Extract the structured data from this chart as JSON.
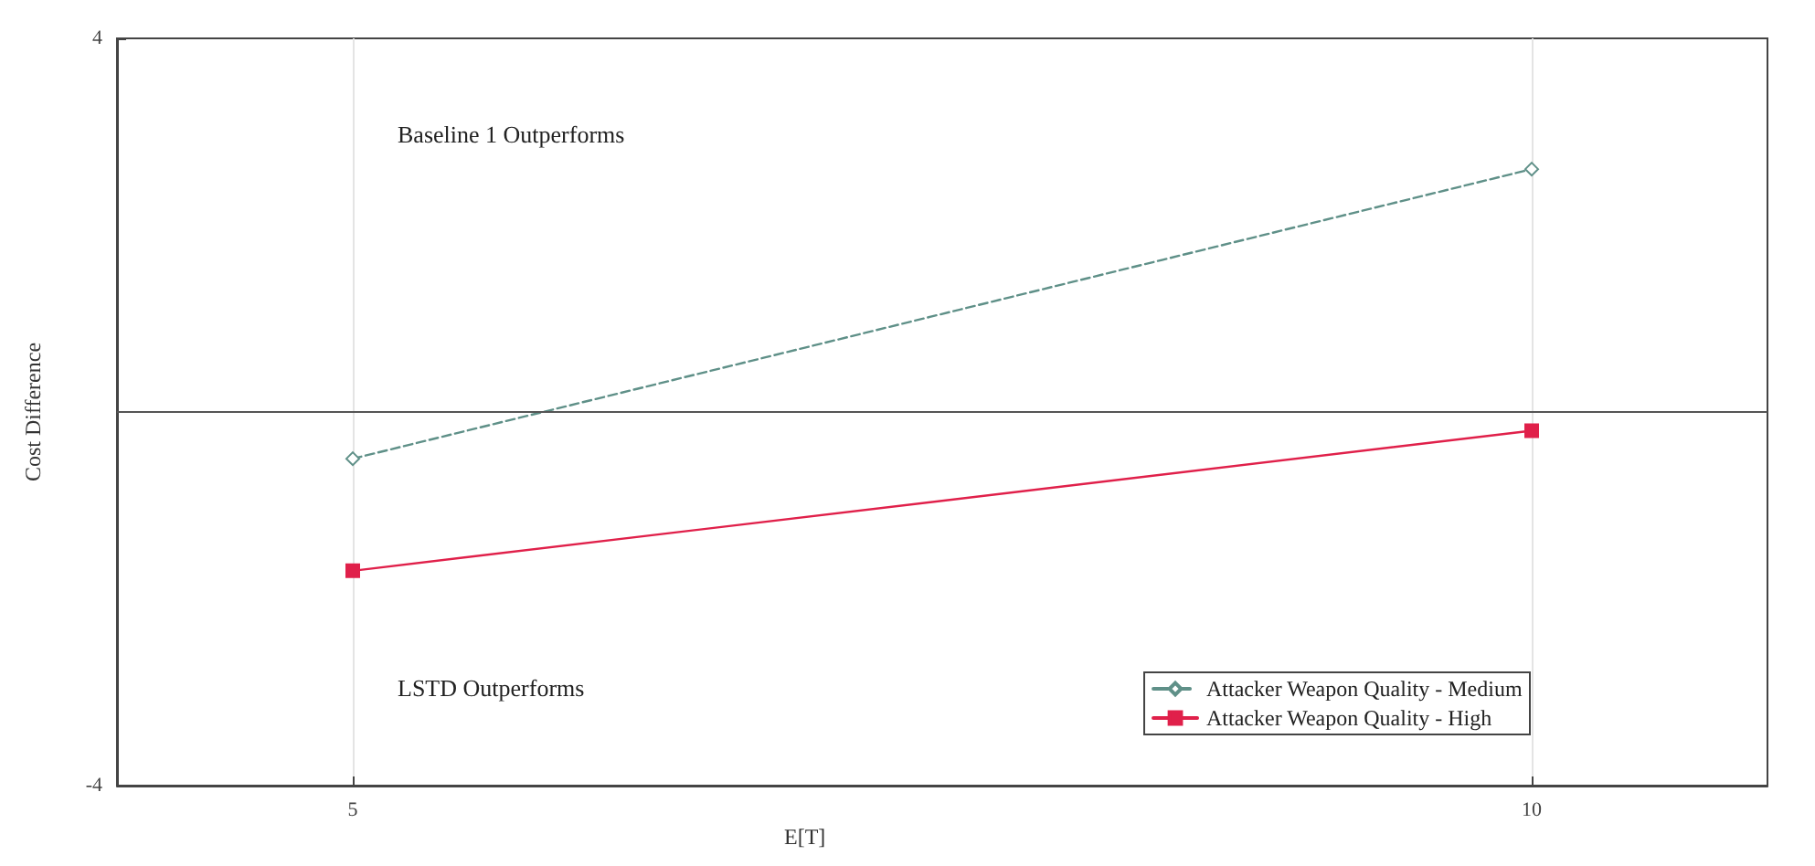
{
  "chart_data": {
    "type": "line",
    "xlabel": "E[T]",
    "ylabel": "Cost Difference",
    "x": [
      5,
      10
    ],
    "series": [
      {
        "name": "Attacker Weapon Quality - Medium",
        "color": "#5f9088",
        "values": [
          -0.5,
          2.6
        ],
        "marker": "diamond",
        "line_style": "dashed"
      },
      {
        "name": "Attacker Weapon Quality - High",
        "color": "#e0204a",
        "values": [
          -1.7,
          -0.2
        ],
        "marker": "square",
        "line_style": "solid"
      }
    ],
    "xlim": [
      4,
      11
    ],
    "xticks": [
      5,
      10
    ],
    "ylim": [
      -4,
      4
    ],
    "yticks": [
      -4,
      4
    ],
    "grid": "x",
    "legend": "bottom right",
    "ref_lines": [
      {
        "axis": "y",
        "value": 0,
        "color": "#555555",
        "line_style": "solid"
      }
    ],
    "annotations": [
      "Baseline 1 Outperforms",
      "LSTD Outperforms"
    ]
  }
}
